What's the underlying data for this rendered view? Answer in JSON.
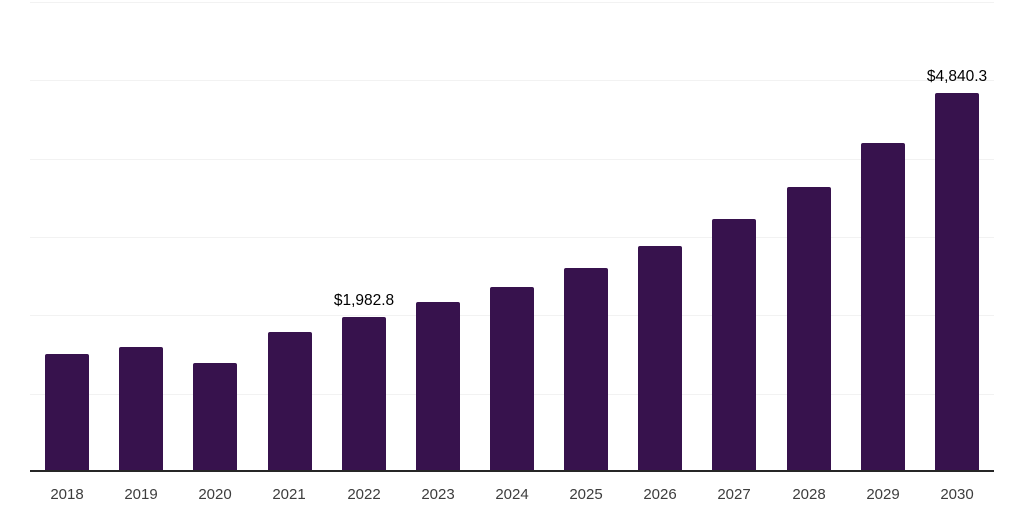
{
  "chart_data": {
    "type": "bar",
    "title": "",
    "xlabel": "",
    "ylabel": "",
    "categories": [
      "2018",
      "2019",
      "2020",
      "2021",
      "2022",
      "2023",
      "2024",
      "2025",
      "2026",
      "2027",
      "2028",
      "2029",
      "2030"
    ],
    "values": [
      1510,
      1595,
      1390,
      1790,
      1982.8,
      2170,
      2360,
      2600,
      2890,
      3230,
      3640,
      4200,
      4840.3
    ],
    "data_labels": [
      {
        "category": "2022",
        "text": "$1,982.8"
      },
      {
        "category": "2030",
        "text": "$4,840.3"
      }
    ],
    "ylim": [
      0,
      6000
    ],
    "gridline_step": 1000,
    "grid": "horizontal-only",
    "legend": "none",
    "y_axis_labels_visible": false,
    "colors": {
      "bar": "#37124D",
      "gridline": "#F2F2F2",
      "axis_line": "#262626",
      "tick_label": "#3D3D3D",
      "data_label": "#000000",
      "background": "#FFFFFF"
    }
  }
}
